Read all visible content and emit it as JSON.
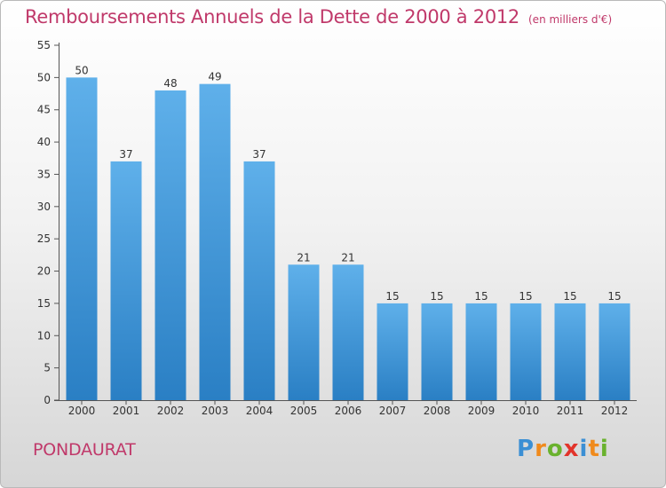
{
  "chart_data": {
    "type": "bar",
    "title": "Remboursements Annuels de la Dette de 2000 à 2012",
    "unit_note": "(en milliers d'€)",
    "categories": [
      "2000",
      "2001",
      "2002",
      "2003",
      "2004",
      "2005",
      "2006",
      "2007",
      "2008",
      "2009",
      "2010",
      "2011",
      "2012"
    ],
    "values": [
      50,
      37,
      48,
      49,
      37,
      21,
      21,
      15,
      15,
      15,
      15,
      15,
      15
    ],
    "ylim": [
      0,
      55
    ],
    "yticks": [
      0,
      5,
      10,
      15,
      20,
      25,
      30,
      35,
      40,
      45,
      50,
      55
    ],
    "grid": false,
    "bar_color": "#3d95d8"
  },
  "commune": "PONDAURAT",
  "logo": {
    "letters": [
      "P",
      "r",
      "o",
      "x",
      "i",
      "t",
      "i"
    ],
    "colors": [
      "#3b8fd4",
      "#f08a1c",
      "#6ab22e",
      "#e2342b",
      "#3b8fd4",
      "#f08a1c",
      "#6ab22e"
    ]
  },
  "colors": {
    "accent": "#c0396a"
  }
}
